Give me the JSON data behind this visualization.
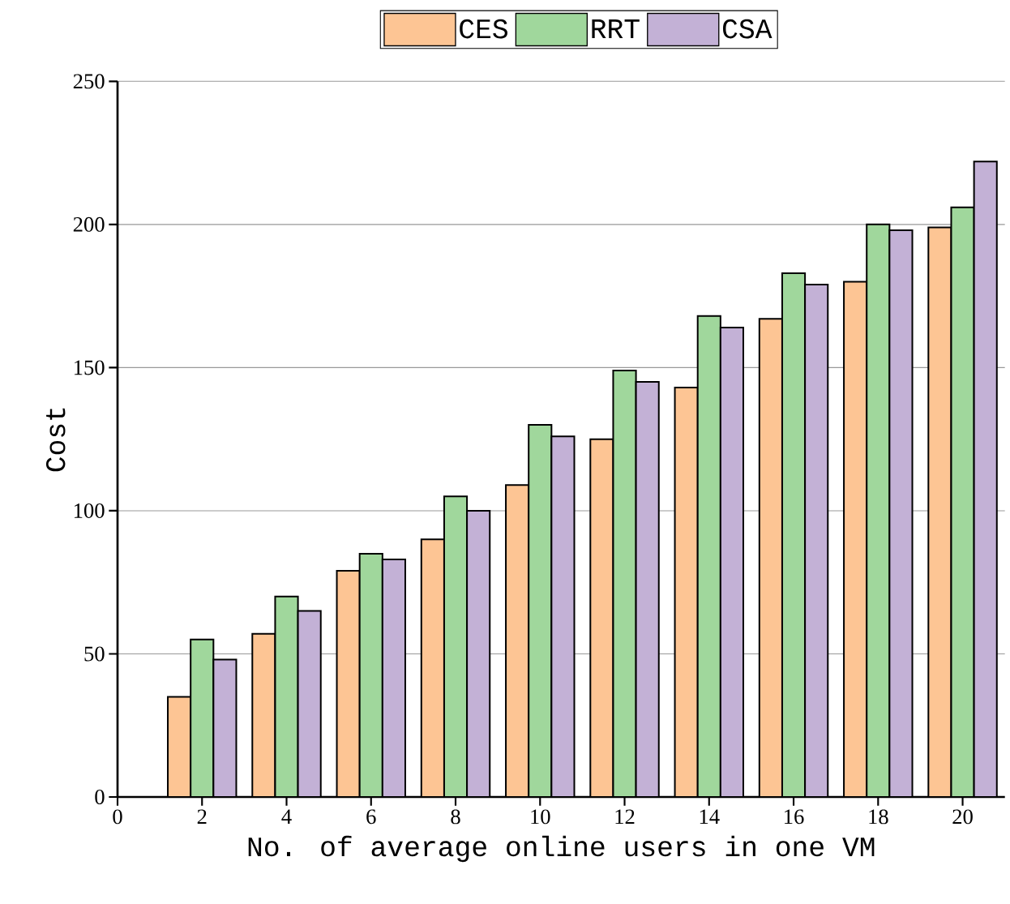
{
  "chart_data": {
    "type": "bar",
    "xlabel": "No. of average online users in one VM",
    "ylabel": "Cost",
    "x": [
      2,
      4,
      6,
      8,
      10,
      12,
      14,
      16,
      18,
      20
    ],
    "series": [
      {
        "name": "CES",
        "color": "#fdc594",
        "values": [
          35,
          57,
          79,
          90,
          109,
          125,
          143,
          167,
          180,
          199
        ]
      },
      {
        "name": "RRT",
        "color": "#a0d79c",
        "values": [
          55,
          70,
          85,
          105,
          130,
          149,
          168,
          183,
          200,
          206
        ]
      },
      {
        "name": "CSA",
        "color": "#c3b1d6",
        "values": [
          48,
          65,
          83,
          100,
          126,
          145,
          164,
          179,
          198,
          222
        ]
      }
    ],
    "xlim": [
      0,
      21
    ],
    "ylim": [
      0,
      250
    ],
    "xticks": [
      0,
      2,
      4,
      6,
      8,
      10,
      12,
      14,
      16,
      18,
      20
    ],
    "yticks": [
      0,
      50,
      100,
      150,
      200,
      250
    ],
    "grid": "y",
    "legend": "top"
  }
}
